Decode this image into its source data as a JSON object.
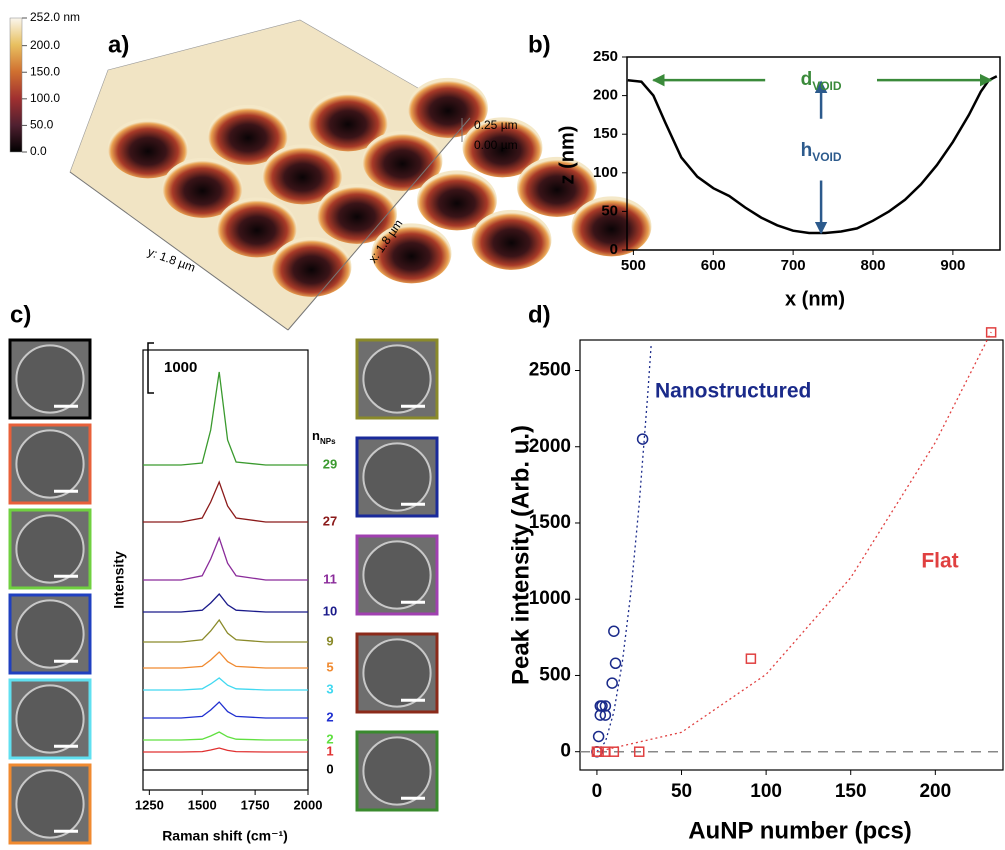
{
  "panel_labels": [
    "a)",
    "b)",
    "c)",
    "d)"
  ],
  "afm_image": {
    "colorbar": {
      "lim": [
        0,
        252
      ],
      "ticks": [
        {
          "value": 252,
          "label": "252.0 nm"
        },
        {
          "value": 200,
          "label": "200.0"
        },
        {
          "value": 150,
          "label": "150.0"
        },
        {
          "value": 100,
          "label": "100.0"
        },
        {
          "value": 50,
          "label": "50.0"
        },
        {
          "value": 0,
          "label": "0.0"
        }
      ]
    },
    "z_labels": [
      "0.25 µm",
      "0.00 µm"
    ],
    "y_axis_label": "y: 1.8 µm",
    "x_axis_label": "x: 1.8 µm"
  },
  "chart_data": [
    {
      "type": "line",
      "xlabel": "x (nm)",
      "ylabel": "z (nm)",
      "xlim": [
        492,
        959
      ],
      "ylim": [
        0,
        250
      ],
      "xticks": [
        500,
        600,
        700,
        800,
        900
      ],
      "yticks": [
        0,
        50,
        100,
        150,
        200,
        250
      ],
      "x": [
        493,
        510,
        525,
        540,
        560,
        580,
        600,
        620,
        640,
        660,
        680,
        700,
        720,
        740,
        760,
        780,
        800,
        820,
        840,
        860,
        880,
        900,
        920,
        935,
        945,
        955
      ],
      "series": [
        {
          "color": "#000000",
          "values": [
            220,
            218,
            200,
            165,
            120,
            95,
            80,
            70,
            55,
            42,
            32,
            25,
            22,
            22,
            24,
            28,
            38,
            50,
            65,
            85,
            110,
            140,
            175,
            205,
            220,
            225
          ]
        }
      ],
      "annotations": {
        "d": {
          "text": "d",
          "sub": "VOID",
          "color": "#3a8a3a"
        },
        "h": {
          "text": "h",
          "sub": "VOID",
          "color": "#2c5a8c"
        }
      }
    },
    {
      "type": "line",
      "xlabel": "Raman shift (cm⁻¹)",
      "ylabel": "Intensity",
      "xlim": [
        1220,
        2000
      ],
      "ylim": [
        0,
        8800
      ],
      "xticks": [
        1250,
        1500,
        1750,
        2000
      ],
      "scale_bar": 1000,
      "legend_title": {
        "text": "n",
        "sub": "NPs"
      },
      "x": [
        1220,
        1400,
        1500,
        1540,
        1580,
        1620,
        1660,
        1800,
        2000
      ],
      "series": [
        {
          "name": "29",
          "color": "#3a9a2e",
          "values": [
            6500,
            6500,
            6540,
            7200,
            8360,
            7000,
            6560,
            6500,
            6500
          ]
        },
        {
          "name": "27",
          "color": "#8b1a1a",
          "values": [
            5360,
            5360,
            5440,
            5760,
            6160,
            5680,
            5440,
            5360,
            5360
          ]
        },
        {
          "name": "11",
          "color": "#8a2b9a",
          "values": [
            4200,
            4200,
            4284,
            4620,
            5040,
            4536,
            4284,
            4200,
            4200
          ]
        },
        {
          "name": "10",
          "color": "#1a1a8a",
          "values": [
            3560,
            3560,
            3596,
            3740,
            3920,
            3704,
            3596,
            3560,
            3560
          ]
        },
        {
          "name": "9",
          "color": "#8a8a2a",
          "values": [
            2960,
            2960,
            3004,
            3180,
            3400,
            3136,
            3004,
            2960,
            2960
          ]
        },
        {
          "name": "5",
          "color": "#f08a30",
          "values": [
            2440,
            2440,
            2472,
            2600,
            2760,
            2568,
            2472,
            2440,
            2440
          ]
        },
        {
          "name": "3",
          "color": "#40d8f0",
          "values": [
            2000,
            2000,
            2024,
            2120,
            2240,
            2096,
            2024,
            2000,
            2000
          ]
        },
        {
          "name": "2",
          "color": "#2030d0",
          "values": [
            1440,
            1440,
            1472,
            1600,
            1760,
            1568,
            1472,
            1440,
            1440
          ]
        },
        {
          "name": "2",
          "color": "#60e040",
          "values": [
            1000,
            1000,
            1016,
            1080,
            1160,
            1064,
            1016,
            1000,
            1000
          ]
        },
        {
          "name": "1",
          "color": "#e03030",
          "values": [
            760,
            760,
            768,
            800,
            840,
            792,
            768,
            760,
            760
          ]
        },
        {
          "name": "0",
          "color": "#000000",
          "values": [
            400,
            400,
            400,
            400,
            400,
            400,
            400,
            400,
            400
          ]
        }
      ]
    },
    {
      "type": "scatter",
      "xlabel": "AuNP number (pcs)",
      "ylabel": "Peak intensity (Arb. u.)",
      "xlim": [
        -10,
        240
      ],
      "ylim": [
        -120,
        2700
      ],
      "xticks": [
        0,
        50,
        100,
        150,
        200
      ],
      "yticks": [
        0,
        500,
        1000,
        1500,
        2000,
        2500
      ],
      "hline": 0,
      "series": [
        {
          "name": "Nanostructured",
          "color": "#1a2a8a",
          "marker": "circle",
          "x": [
            0,
            1,
            2,
            2,
            3,
            5,
            5,
            9,
            10,
            11,
            27
          ],
          "values": [
            0,
            100,
            240,
            300,
            300,
            240,
            300,
            450,
            790,
            580,
            2050
          ]
        },
        {
          "name": "Flat",
          "color": "#e04040",
          "marker": "square",
          "x": [
            0,
            1,
            5,
            10,
            25,
            91,
            233
          ],
          "values": [
            0,
            0,
            0,
            0,
            0,
            610,
            2750
          ]
        }
      ],
      "fits": [
        {
          "color": "#1a2a8a",
          "x": [
            0,
            5,
            10,
            15,
            20,
            25,
            30,
            32
          ],
          "values": [
            0,
            65,
            260,
            585,
            1040,
            1625,
            2340,
            2662
          ]
        },
        {
          "color": "#e04040",
          "x": [
            0,
            50,
            100,
            150,
            200,
            233
          ],
          "values": [
            0,
            127,
            507,
            1141,
            2028,
            2752
          ]
        }
      ]
    }
  ]
}
